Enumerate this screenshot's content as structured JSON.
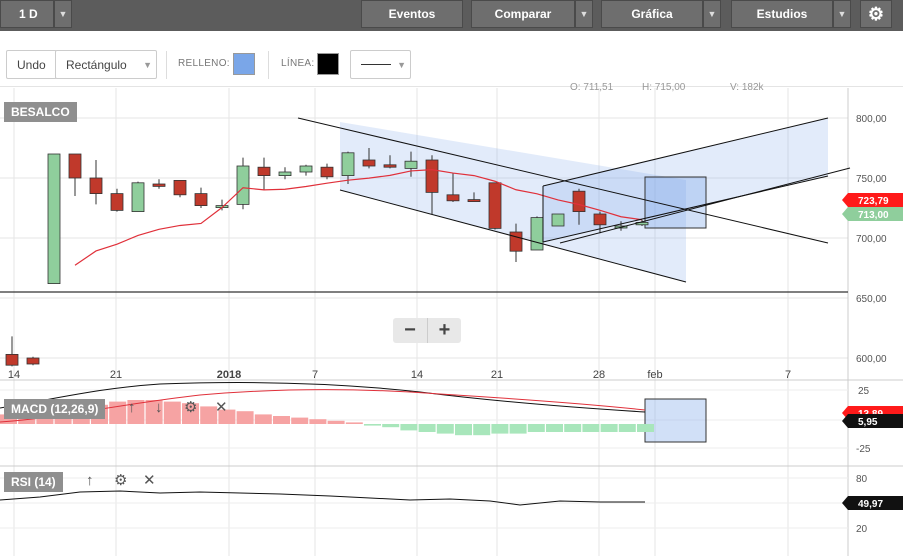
{
  "toolbar": {
    "interval": "1 D",
    "events": "Eventos",
    "compare": "Comparar",
    "chart": "Gráfica",
    "studies": "Estudios"
  },
  "drawing": {
    "undo": "Undo",
    "tool": "Rectángulo",
    "fill_label": "RELLENO:",
    "line_label": "LÍNEA:",
    "fill_color": "#7aa6e8",
    "line_color": "#000000"
  },
  "ohlc_readout": {
    "o": "O: 711,51",
    "h": "H: 715,00",
    "v": "V: 182k"
  },
  "zoom": {
    "minus": "−",
    "plus": "+"
  },
  "chart_data": [
    {
      "type": "candlestick",
      "title": "BESALCO",
      "x_tick_labels": [
        "14",
        "21",
        "2018",
        "7",
        "14",
        "21",
        "28",
        "feb",
        "7"
      ],
      "y_tick_labels": [
        "800,00",
        "750,00",
        "700,00",
        "650,00",
        "600,00"
      ],
      "ylim": [
        595,
        830
      ],
      "last_price_tag": "713,00",
      "ma_tag": "723,79",
      "horizontal_line": 655,
      "candles": [
        {
          "o": 603,
          "h": 618,
          "l": 593,
          "c": 594
        },
        {
          "o": 600,
          "h": 601,
          "l": 594,
          "c": 595
        },
        {
          "o": 662,
          "h": 770,
          "l": 662,
          "c": 770
        },
        {
          "o": 770,
          "h": 770,
          "l": 735,
          "c": 750
        },
        {
          "o": 750,
          "h": 765,
          "l": 728,
          "c": 737
        },
        {
          "o": 737,
          "h": 741,
          "l": 722,
          "c": 723
        },
        {
          "o": 722,
          "h": 747,
          "l": 722,
          "c": 746
        },
        {
          "o": 745,
          "h": 749,
          "l": 741,
          "c": 743
        },
        {
          "o": 748,
          "h": 748,
          "l": 734,
          "c": 736
        },
        {
          "o": 737,
          "h": 742,
          "l": 725,
          "c": 727
        },
        {
          "o": 727,
          "h": 732,
          "l": 723,
          "c": 727
        },
        {
          "o": 728,
          "h": 767,
          "l": 724,
          "c": 760
        },
        {
          "o": 759,
          "h": 767,
          "l": 740,
          "c": 752
        },
        {
          "o": 752,
          "h": 759,
          "l": 749,
          "c": 755
        },
        {
          "o": 755,
          "h": 761,
          "l": 752,
          "c": 760
        },
        {
          "o": 759,
          "h": 762,
          "l": 749,
          "c": 751
        },
        {
          "o": 752,
          "h": 772,
          "l": 745,
          "c": 771
        },
        {
          "o": 765,
          "h": 775,
          "l": 758,
          "c": 760
        },
        {
          "o": 761,
          "h": 769,
          "l": 758,
          "c": 759
        },
        {
          "o": 758,
          "h": 772,
          "l": 751,
          "c": 764
        },
        {
          "o": 765,
          "h": 769,
          "l": 720,
          "c": 738
        },
        {
          "o": 736,
          "h": 754,
          "l": 730,
          "c": 731
        },
        {
          "o": 732,
          "h": 738,
          "l": 730,
          "c": 731
        },
        {
          "o": 746,
          "h": 746,
          "l": 707,
          "c": 708
        },
        {
          "o": 705,
          "h": 712,
          "l": 680,
          "c": 689
        },
        {
          "o": 690,
          "h": 718,
          "l": 690,
          "c": 717
        },
        {
          "o": 710,
          "h": 720,
          "l": 710,
          "c": 720
        },
        {
          "o": 739,
          "h": 741,
          "l": 711,
          "c": 722
        },
        {
          "o": 720,
          "h": 722,
          "l": 704,
          "c": 711
        },
        {
          "o": 710,
          "h": 714,
          "l": 706,
          "c": 710
        },
        {
          "o": 711,
          "h": 715,
          "l": 710,
          "c": 713
        }
      ]
    },
    {
      "type": "bar",
      "title": "MACD (12,26,9)",
      "y_tick_labels": [
        "25",
        "-25"
      ],
      "tags": [
        "13,89",
        "5,95"
      ],
      "histogram": [
        6,
        7,
        8,
        9,
        10,
        12,
        14,
        15,
        15,
        14,
        13,
        11,
        9,
        8,
        6,
        5,
        4,
        3,
        2,
        1,
        -1,
        -2,
        -4,
        -5,
        -6,
        -7,
        -7,
        -6,
        -6,
        -5,
        -5,
        -5,
        -5,
        -5,
        -5,
        -5
      ]
    },
    {
      "type": "line",
      "title": "RSI (14)",
      "y_tick_labels": [
        "80",
        "49,97",
        "20"
      ],
      "last_value_tag": "49,97"
    }
  ]
}
